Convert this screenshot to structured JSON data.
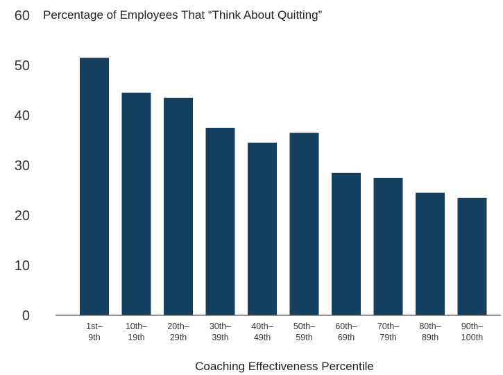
{
  "chart_data": {
    "type": "bar",
    "title": "Percentage of Employees That “Think About Quitting”",
    "xlabel": "Coaching Effectiveness Percentile",
    "ylabel": "",
    "ylim": [
      0,
      60
    ],
    "yticks": [
      "0",
      "10",
      "20",
      "30",
      "40",
      "50",
      "60"
    ],
    "categories": [
      [
        "1st–",
        "9th"
      ],
      [
        "10th–",
        "19th"
      ],
      [
        "20th–",
        "29th"
      ],
      [
        "30th–",
        "39th"
      ],
      [
        "40th–",
        "49th"
      ],
      [
        "50th–",
        "59th"
      ],
      [
        "60th–",
        "69th"
      ],
      [
        "70th–",
        "79th"
      ],
      [
        "80th–",
        "89th"
      ],
      [
        "90th–",
        "100th"
      ]
    ],
    "values": [
      51.5,
      44.5,
      43.5,
      37.5,
      34.5,
      36.5,
      28.5,
      27.5,
      24.5,
      23.5
    ],
    "bar_color": "#15405f",
    "axis_color": "#555555",
    "grid": false,
    "legend": "none"
  }
}
